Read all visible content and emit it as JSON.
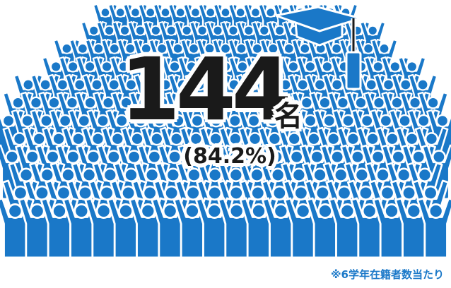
{
  "infographic": {
    "count_value": "144",
    "count_unit": "名",
    "percentage": "(84.2%)",
    "footnote": "※6学年在籍者数当たり",
    "crowd_icon": "raised-arms-person-icon",
    "cap_icon": "graduation-cap-icon",
    "colors": {
      "figure_fill": "#1a78c8",
      "figure_outline": "#ffffff",
      "text": "#1a1a1a",
      "footnote": "#1a78c8"
    }
  }
}
